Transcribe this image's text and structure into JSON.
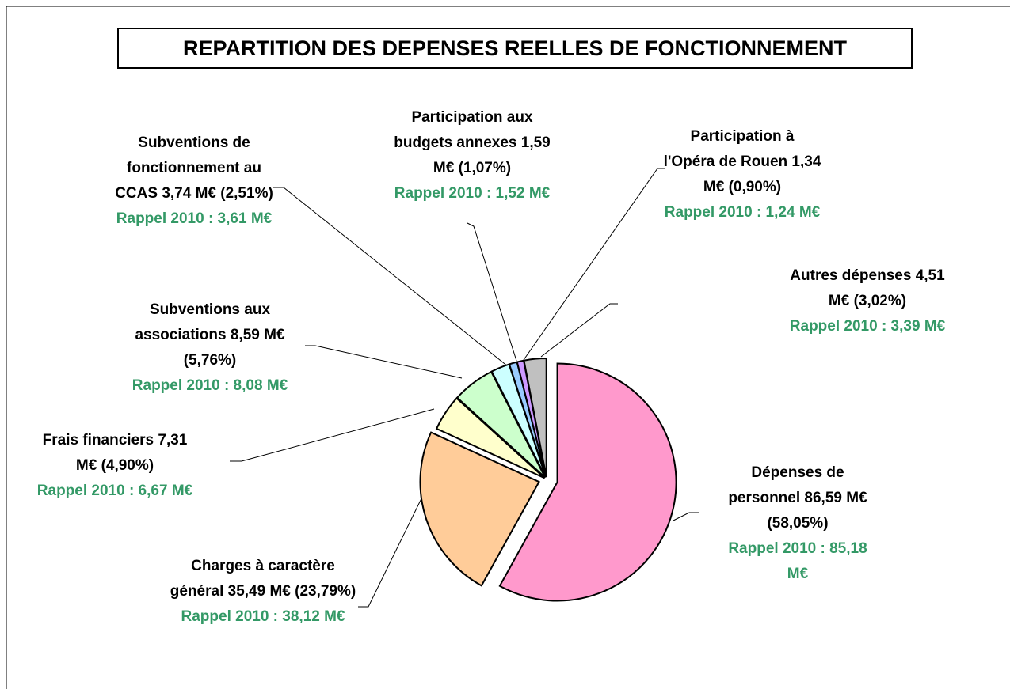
{
  "chart_data": {
    "type": "pie",
    "title": "REPARTITION DES DEPENSES REELLES DE FONCTIONNEMENT",
    "categories": [
      "Dépenses de personnel",
      "Charges à caractère général",
      "Frais financiers",
      "Subventions aux associations",
      "Subventions de fonctionnement au CCAS",
      "Participation aux budgets annexes",
      "Participation à l'Opéra de Rouen",
      "Autres dépenses"
    ],
    "values": [
      58.05,
      23.79,
      4.9,
      5.76,
      2.51,
      1.07,
      0.9,
      3.02
    ],
    "value_labels": [
      "86,59 M€ (58,05%)",
      "35,49 M€ (23,79%)",
      "7,31 M€ (4,90%)",
      "8,59 M€ (5,76%)",
      "3,74 M€ (2,51%)",
      "1,59 M€ (1,07%)",
      "1,34 M€ (0,90%)",
      "4,51 M€ (3,02%)"
    ],
    "annotations": [
      "Rappel 2010 : 85,18 M€",
      "Rappel 2010 : 38,12 M€",
      "Rappel 2010 : 6,67 M€",
      "Rappel 2010 : 8,08 M€",
      "Rappel 2010 : 3,61 M€",
      "Rappel 2010 : 1,52 M€",
      "Rappel 2010 : 1,24 M€",
      "Rappel 2010 : 3,39 M€"
    ],
    "colors": [
      "#ff99cc",
      "#ffcc99",
      "#ffffcc",
      "#ccffcc",
      "#ccffff",
      "#99ccff",
      "#cc99ff",
      "#c0c0c0"
    ]
  }
}
